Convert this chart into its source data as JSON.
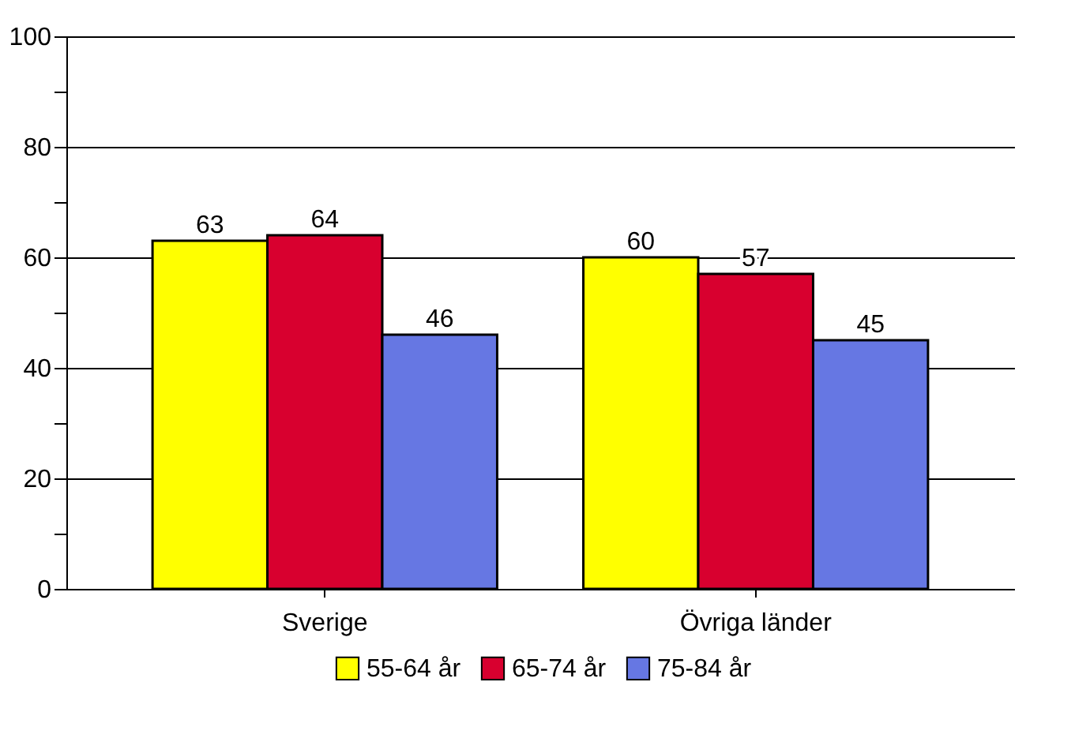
{
  "chart_data": {
    "type": "bar",
    "categories": [
      "Sverige",
      "Övriga länder"
    ],
    "series": [
      {
        "name": "55-64 år",
        "color": "#ffff00",
        "values": [
          63,
          60
        ]
      },
      {
        "name": "65-74 år",
        "color": "#d8002f",
        "values": [
          64,
          57
        ]
      },
      {
        "name": "75-84 år",
        "color": "#6677e3",
        "values": [
          46,
          45
        ]
      }
    ],
    "ylim": [
      0,
      100
    ],
    "yticks": [
      0,
      {
        "value": 10,
        "label": null
      },
      20,
      {
        "value": 30,
        "label": null
      },
      40,
      {
        "value": 50,
        "label": null
      },
      60,
      {
        "value": 70,
        "label": null
      },
      80,
      {
        "value": 90,
        "label": null
      },
      100
    ],
    "grid": "y",
    "legend": "bottom",
    "data_labels": true
  }
}
